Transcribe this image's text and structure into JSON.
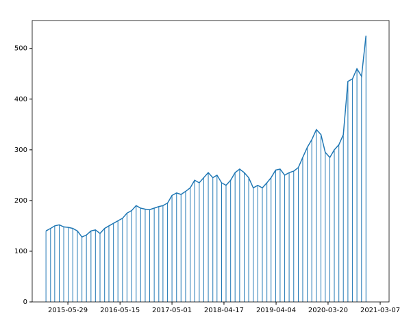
{
  "chart_data": {
    "type": "stem",
    "color": "#1f77b4",
    "x": [
      "2015-01-01",
      "2015-02-01",
      "2015-03-01",
      "2015-04-01",
      "2015-05-01",
      "2015-06-01",
      "2015-07-01",
      "2015-08-01",
      "2015-09-01",
      "2015-10-01",
      "2015-11-01",
      "2015-12-01",
      "2016-01-01",
      "2016-02-01",
      "2016-03-01",
      "2016-04-01",
      "2016-05-01",
      "2016-06-01",
      "2016-07-01",
      "2016-08-01",
      "2016-09-01",
      "2016-10-01",
      "2016-11-01",
      "2016-12-01",
      "2017-01-01",
      "2017-02-01",
      "2017-03-01",
      "2017-04-01",
      "2017-05-01",
      "2017-06-01",
      "2017-07-01",
      "2017-08-01",
      "2017-09-01",
      "2017-10-01",
      "2017-11-01",
      "2017-12-01",
      "2018-01-01",
      "2018-02-01",
      "2018-03-01",
      "2018-04-01",
      "2018-05-01",
      "2018-06-01",
      "2018-07-01",
      "2018-08-01",
      "2018-09-01",
      "2018-10-01",
      "2018-11-01",
      "2018-12-01",
      "2019-01-01",
      "2019-02-01",
      "2019-03-01",
      "2019-04-01",
      "2019-05-01",
      "2019-06-01",
      "2019-07-01",
      "2019-08-01",
      "2019-09-01",
      "2019-10-01",
      "2019-11-01",
      "2019-12-01",
      "2020-01-01",
      "2020-02-01",
      "2020-03-01",
      "2020-04-01",
      "2020-05-01",
      "2020-06-01",
      "2020-07-01",
      "2020-08-01",
      "2020-09-01",
      "2020-10-01",
      "2020-11-01",
      "2020-12-01"
    ],
    "values": [
      140,
      145,
      150,
      152,
      148,
      147,
      145,
      140,
      128,
      132,
      140,
      142,
      135,
      145,
      150,
      155,
      160,
      165,
      175,
      180,
      190,
      185,
      183,
      182,
      185,
      188,
      190,
      195,
      210,
      215,
      212,
      218,
      225,
      240,
      235,
      245,
      255,
      245,
      250,
      235,
      230,
      240,
      255,
      262,
      255,
      245,
      225,
      230,
      225,
      235,
      245,
      260,
      262,
      250,
      255,
      258,
      265,
      285,
      305,
      320,
      340,
      330,
      295,
      285,
      300,
      310,
      330,
      435,
      440,
      460,
      445,
      525
    ],
    "xlim": [
      "2014-09-30",
      "2021-05-06"
    ],
    "xticks": [
      "2015-05-29",
      "2016-05-15",
      "2017-05-01",
      "2018-04-17",
      "2019-04-04",
      "2020-03-20",
      "2021-03-07"
    ],
    "ylim": [
      0,
      555
    ],
    "yticks": [
      0,
      100,
      200,
      300,
      400,
      500
    ]
  }
}
